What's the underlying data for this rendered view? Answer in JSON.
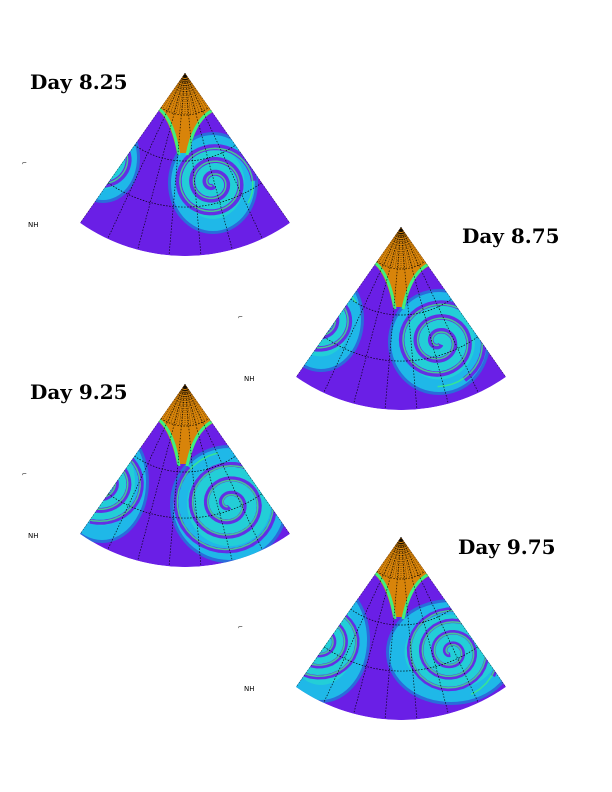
{
  "panels": [
    {
      "day_label": "Day 8.25",
      "hemisphere_label": "NH"
    },
    {
      "day_label": "Day 8.75",
      "hemisphere_label": "NH"
    },
    {
      "day_label": "Day 9.25",
      "hemisphere_label": "NH"
    },
    {
      "day_label": "Day 9.75",
      "hemisphere_label": "NH"
    }
  ],
  "colors": {
    "background_field": "#6a1fe6",
    "vortex_outer": "#1fb8e8",
    "vortex_inner": "#27e0c8",
    "vortex_edge": "#1a7fd8",
    "ridge": "#3cf080",
    "hot_region": "#d8840a",
    "grid_line": "#000000"
  }
}
